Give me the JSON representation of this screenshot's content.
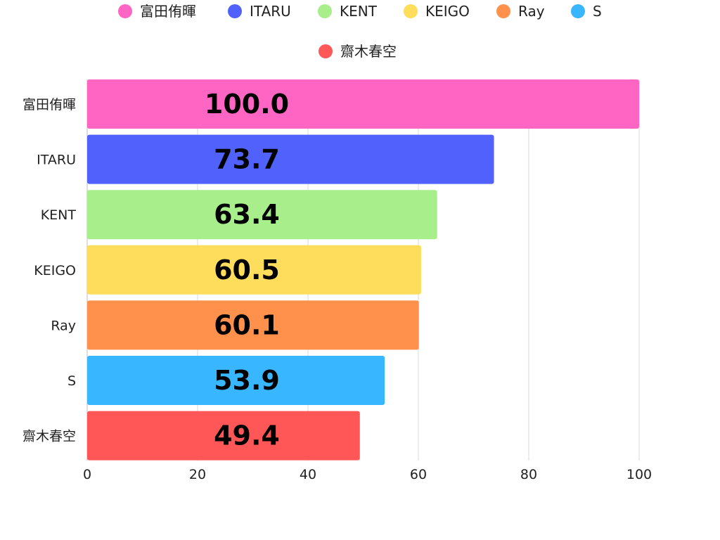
{
  "chart_data": {
    "type": "bar",
    "orientation": "horizontal",
    "categories": [
      "富田侑暉",
      "ITARU",
      "KENT",
      "KEIGO",
      "Ray",
      "S",
      "齋木春空"
    ],
    "values": [
      100.0,
      73.7,
      63.4,
      60.5,
      60.1,
      53.9,
      49.4
    ],
    "value_labels": [
      "100.0",
      "73.7",
      "63.4",
      "60.5",
      "60.1",
      "53.9",
      "49.4"
    ],
    "colors": [
      "#ff66c4",
      "#5162fc",
      "#a8ee8a",
      "#ffdd5c",
      "#ff914d",
      "#38b6ff",
      "#ff5757"
    ],
    "legend": [
      "富田侑暉",
      "ITARU",
      "KENT",
      "KEIGO",
      "Ray",
      "S",
      "齋木春空"
    ],
    "legend_position": "top",
    "xlim": [
      0,
      100
    ],
    "x_ticks": [
      0,
      20,
      40,
      60,
      80,
      100
    ],
    "grid": true,
    "title": "",
    "xlabel": "",
    "ylabel": ""
  }
}
